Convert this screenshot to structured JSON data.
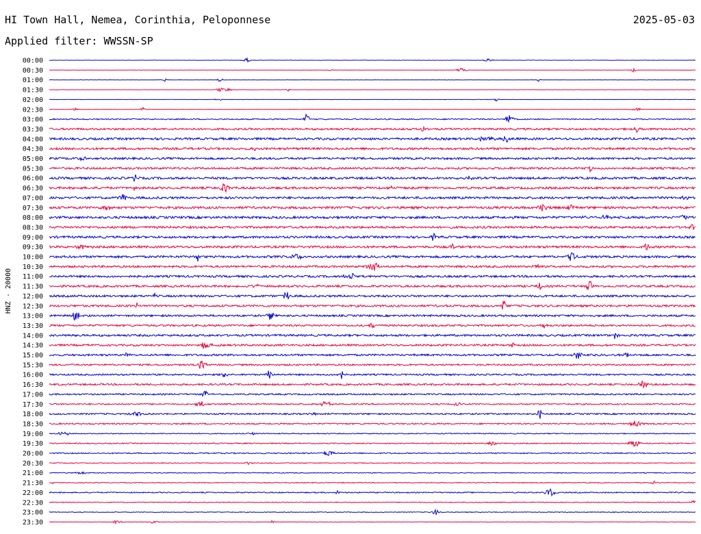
{
  "header": {
    "station": "HI Town Hall, Nemea, Corinthia, Peloponnese",
    "date": "2025-05-03",
    "filter": "Applied filter: WWSSN-SP"
  },
  "chart_data": {
    "type": "line",
    "ylabel": "HNZ - 20000",
    "colors": [
      "#0000cc",
      "#e8003a"
    ],
    "rows": [
      "00:00",
      "00:30",
      "01:00",
      "01:30",
      "02:00",
      "02:30",
      "03:00",
      "03:30",
      "04:00",
      "04:30",
      "05:00",
      "05:30",
      "06:00",
      "06:30",
      "07:00",
      "07:30",
      "08:00",
      "08:30",
      "09:00",
      "09:30",
      "10:00",
      "10:30",
      "11:00",
      "11:30",
      "12:00",
      "12:30",
      "13:00",
      "13:30",
      "14:00",
      "14:30",
      "15:00",
      "15:30",
      "16:00",
      "16:30",
      "17:00",
      "17:30",
      "18:00",
      "18:30",
      "19:00",
      "19:30",
      "20:00",
      "20:30",
      "21:00",
      "21:30",
      "22:00",
      "22:30",
      "23:00",
      "23:30"
    ],
    "noise_level": [
      0.2,
      0.2,
      0.2,
      0.2,
      0.2,
      0.3,
      0.8,
      1.4,
      1.6,
      1.6,
      1.5,
      1.5,
      1.6,
      1.6,
      1.6,
      1.7,
      1.7,
      1.6,
      1.6,
      1.6,
      1.6,
      1.5,
      1.5,
      1.5,
      1.5,
      1.5,
      1.4,
      1.4,
      1.5,
      1.4,
      1.4,
      1.2,
      1.2,
      1.3,
      1.1,
      1.0,
      1.1,
      1.0,
      0.7,
      0.8,
      0.8,
      0.6,
      0.6,
      0.6,
      0.8,
      0.6,
      0.5,
      0.3
    ]
  }
}
